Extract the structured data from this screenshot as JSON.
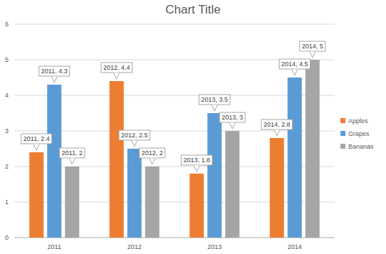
{
  "chart_data": {
    "type": "bar",
    "title": "Chart Title",
    "categories": [
      "2011",
      "2012",
      "2013",
      "2014"
    ],
    "series": [
      {
        "name": "Apples",
        "color": "#ed7d31",
        "values": [
          2.4,
          4.4,
          1.8,
          2.8
        ],
        "value_labels": [
          "2011, 2.4",
          "2012, 4.4",
          "2013, 1.8",
          "2014, 2.8"
        ]
      },
      {
        "name": "Grapes",
        "color": "#5b9bd5",
        "values": [
          4.3,
          2.5,
          3.5,
          4.5
        ],
        "value_labels": [
          "2011, 4.3",
          "2012, 2.5",
          "2013, 3.5",
          "2014, 4.5"
        ]
      },
      {
        "name": "Bananas",
        "color": "#a5a5a5",
        "values": [
          2,
          2,
          3,
          5
        ],
        "value_labels": [
          "2011, 2",
          "2012, 2",
          "2013, 3",
          "2014, 5"
        ]
      }
    ],
    "ylim": [
      0,
      6
    ],
    "yticks": [
      0,
      1,
      2,
      3,
      4,
      5,
      6
    ],
    "grid": true,
    "legend": "right",
    "data_labels": true
  }
}
